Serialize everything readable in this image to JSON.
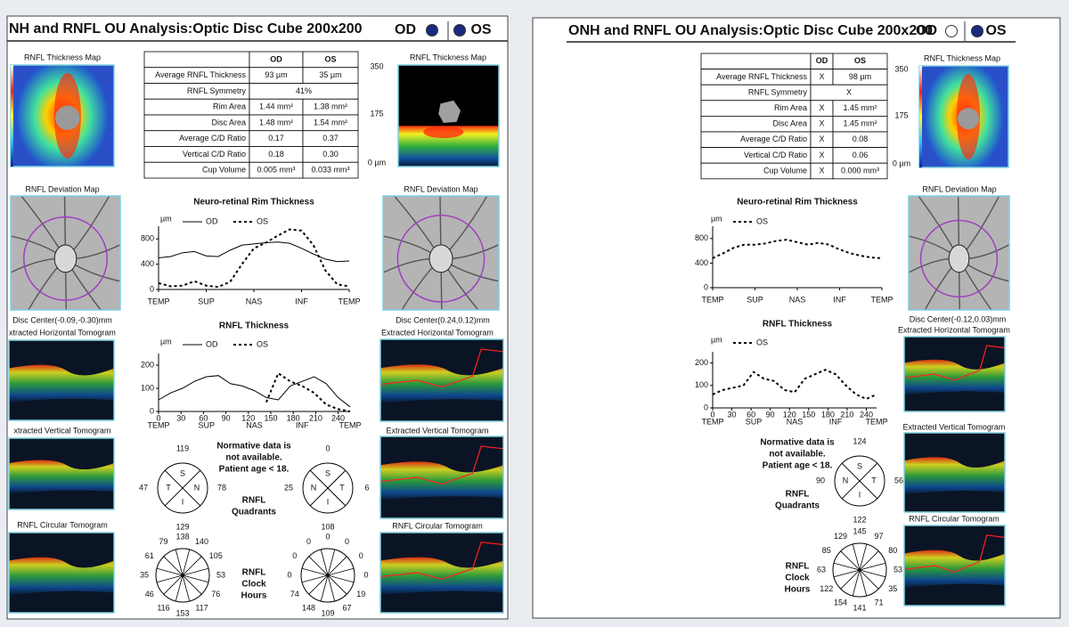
{
  "left": {
    "title": "NH and RNFL OU Analysis:Optic Disc Cube 200x200",
    "eye_labels": [
      "OD",
      "OS"
    ],
    "thickness_map_titles": [
      "RNFL Thickness Map",
      "RNFL Thickness Map"
    ],
    "scale_labels": [
      "350",
      "175",
      "0 µm"
    ],
    "table": {
      "header": [
        "OD",
        "OS"
      ],
      "rows": [
        [
          "Average RNFL Thickness",
          "93 µm",
          "35 µm"
        ],
        [
          "RNFL Symmetry",
          "41%"
        ],
        [
          "Rim Area",
          "1.44 mm²",
          "1.38 mm²"
        ],
        [
          "Disc Area",
          "1.48 mm²",
          "1.54 mm²"
        ],
        [
          "Average C/D Ratio",
          "0.17",
          "0.37"
        ],
        [
          "Vertical C/D Ratio",
          "0.18",
          "0.30"
        ],
        [
          "Cup Volume",
          "0.005 mm³",
          "0.033 mm³"
        ]
      ]
    },
    "deviation_map_titles": [
      "RNFL Deviation Map",
      "RNFL Deviation Map"
    ],
    "disc_centers": [
      "Disc Center(-0.09,-0.30)mm",
      "Disc Center(0.24,0.12)mm"
    ],
    "horizontal_tomogram_titles": [
      "xtracted Horizontal Tomogram",
      "Extracted Horizontal Tomogram"
    ],
    "vertical_tomogram_titles": [
      "xtracted Vertical Tomogram",
      "Extracted Vertical Tomogram"
    ],
    "circular_tomogram_titles": [
      "RNFL Circular Tomogram",
      "RNFL Circular Tomogram"
    ],
    "rim_chart": {
      "type": "line",
      "title": "Neuro-retinal Rim Thickness",
      "y_unit": "µm",
      "xlim": [
        0,
        256
      ],
      "ylim": [
        0,
        1000
      ],
      "yticks": [
        0,
        400,
        800
      ],
      "region_ticks": [
        {
          "value": 0,
          "label": "TEMP"
        },
        {
          "value": 64,
          "label": "SUP"
        },
        {
          "value": 128,
          "label": "NAS"
        },
        {
          "value": 192,
          "label": "INF"
        },
        {
          "value": 256,
          "label": "TEMP"
        }
      ],
      "series": [
        {
          "name": "OD",
          "color": "#000000",
          "style": "solid",
          "x": [
            0,
            16,
            32,
            48,
            64,
            80,
            96,
            112,
            128,
            144,
            160,
            176,
            192,
            208,
            224,
            240,
            256
          ],
          "values": [
            500,
            520,
            580,
            600,
            530,
            520,
            620,
            700,
            720,
            740,
            750,
            730,
            650,
            560,
            480,
            440,
            450
          ]
        },
        {
          "name": "OS",
          "color": "#000000",
          "style": "dotted",
          "x": [
            0,
            16,
            32,
            48,
            64,
            80,
            96,
            112,
            128,
            144,
            160,
            176,
            192,
            208,
            224,
            240,
            256
          ],
          "values": [
            100,
            50,
            60,
            130,
            60,
            40,
            120,
            400,
            650,
            740,
            850,
            950,
            930,
            700,
            300,
            80,
            50
          ]
        }
      ]
    },
    "rnfl_chart": {
      "type": "line",
      "title": "RNFL Thickness",
      "y_unit": "µm",
      "xlim": [
        0,
        256
      ],
      "ylim": [
        0,
        250
      ],
      "yticks": [
        0,
        100,
        200
      ],
      "xticks": [
        0,
        30,
        60,
        90,
        120,
        150,
        180,
        210,
        240
      ],
      "region_ticks": [
        {
          "value": 0,
          "label": "TEMP"
        },
        {
          "value": 64,
          "label": "SUP"
        },
        {
          "value": 128,
          "label": "NAS"
        },
        {
          "value": 192,
          "label": "INF"
        },
        {
          "value": 256,
          "label": "TEMP"
        }
      ],
      "series": [
        {
          "name": "OD",
          "color": "#000000",
          "style": "solid",
          "x": [
            0,
            16,
            32,
            48,
            64,
            80,
            96,
            112,
            128,
            144,
            160,
            176,
            192,
            208,
            224,
            240,
            256
          ],
          "values": [
            50,
            80,
            100,
            130,
            150,
            155,
            120,
            110,
            90,
            60,
            50,
            110,
            130,
            150,
            120,
            60,
            20
          ]
        },
        {
          "name": "OS",
          "color": "#000000",
          "style": "dotted",
          "x": [
            0,
            16,
            32,
            48,
            64,
            80,
            96,
            112,
            128,
            144,
            160,
            176,
            192,
            208,
            224,
            240,
            256
          ],
          "values": [
            null,
            null,
            null,
            null,
            null,
            null,
            null,
            null,
            null,
            40,
            165,
            130,
            110,
            80,
            30,
            10,
            0
          ]
        }
      ]
    },
    "normative_note": [
      "Normative data is",
      "not available.",
      "Patient age < 18."
    ],
    "quadrants_label": [
      "RNFL",
      "Quadrants"
    ],
    "quadrants": [
      {
        "letters": [
          "S",
          "T",
          "N",
          "I"
        ],
        "values": [
          119,
          47,
          78,
          129
        ]
      },
      {
        "letters": [
          "S",
          "N",
          "T",
          "I"
        ],
        "values": [
          0,
          25,
          6,
          108
        ]
      }
    ],
    "clock_label": [
      "RNFL",
      "Clock",
      "Hours"
    ],
    "clock_hours": [
      [
        138,
        140,
        105,
        53,
        76,
        117,
        153,
        116,
        46,
        35,
        61,
        79
      ],
      [
        0,
        0,
        0,
        0,
        19,
        67,
        109,
        148,
        74,
        0,
        0,
        0
      ]
    ]
  },
  "right": {
    "title": "ONH and RNFL OU Analysis:Optic Disc Cube 200x200",
    "eye_labels": [
      "OD",
      "OS"
    ],
    "thickness_map_titles": [
      "RNFL Thickness Map"
    ],
    "scale_labels": [
      "350",
      "175",
      "0 µm"
    ],
    "table": {
      "header": [
        "OD",
        "OS"
      ],
      "rows": [
        [
          "Average RNFL Thickness",
          "X",
          "98 µm"
        ],
        [
          "RNFL Symmetry",
          "X"
        ],
        [
          "Rim Area",
          "X",
          "1.45 mm²"
        ],
        [
          "Disc Area",
          "X",
          "1.45 mm²"
        ],
        [
          "Average C/D Ratio",
          "X",
          "0.08"
        ],
        [
          "Vertical C/D Ratio",
          "X",
          "0.06"
        ],
        [
          "Cup Volume",
          "X",
          "0.000 mm³"
        ]
      ]
    },
    "deviation_map_titles": [
      "RNFL Deviation Map"
    ],
    "disc_centers": [
      "Disc Center(-0.12,0.03)mm"
    ],
    "horizontal_tomogram_titles": [
      "Extracted Horizontal Tomogram"
    ],
    "vertical_tomogram_titles": [
      "Extracted Vertical Tomogram"
    ],
    "circular_tomogram_titles": [
      "RNFL Circular Tomogram"
    ],
    "rim_chart": {
      "type": "line",
      "title": "Neuro-retinal Rim Thickness",
      "y_unit": "µm",
      "xlim": [
        0,
        256
      ],
      "ylim": [
        0,
        1000
      ],
      "yticks": [
        0,
        400,
        800
      ],
      "region_ticks": [
        {
          "value": 0,
          "label": "TEMP"
        },
        {
          "value": 64,
          "label": "SUP"
        },
        {
          "value": 128,
          "label": "NAS"
        },
        {
          "value": 192,
          "label": "INF"
        },
        {
          "value": 256,
          "label": "TEMP"
        }
      ],
      "series": [
        {
          "name": "OS",
          "color": "#000000",
          "style": "dotted",
          "x": [
            0,
            16,
            32,
            48,
            64,
            80,
            96,
            112,
            128,
            144,
            160,
            176,
            192,
            208,
            224,
            240,
            256
          ],
          "values": [
            480,
            560,
            650,
            700,
            700,
            720,
            760,
            780,
            740,
            700,
            730,
            700,
            620,
            560,
            520,
            490,
            480
          ]
        }
      ]
    },
    "rnfl_chart": {
      "type": "line",
      "title": "RNFL Thickness",
      "y_unit": "µm",
      "xlim": [
        0,
        256
      ],
      "ylim": [
        0,
        250
      ],
      "yticks": [
        0,
        100,
        200
      ],
      "xticks": [
        0,
        30,
        60,
        90,
        120,
        150,
        180,
        210,
        240
      ],
      "region_ticks": [
        {
          "value": 0,
          "label": "TEMP"
        },
        {
          "value": 64,
          "label": "SUP"
        },
        {
          "value": 128,
          "label": "NAS"
        },
        {
          "value": 192,
          "label": "INF"
        },
        {
          "value": 256,
          "label": "TEMP"
        }
      ],
      "series": [
        {
          "name": "OS",
          "color": "#000000",
          "style": "dotted",
          "x": [
            0,
            16,
            32,
            48,
            64,
            80,
            96,
            112,
            128,
            144,
            160,
            176,
            192,
            208,
            224,
            240,
            256
          ],
          "values": [
            60,
            80,
            90,
            100,
            160,
            130,
            120,
            80,
            70,
            130,
            150,
            170,
            150,
            100,
            60,
            40,
            60
          ]
        }
      ]
    },
    "normative_note": [
      "Normative data is",
      "not available.",
      "Patient age < 18."
    ],
    "quadrants_label": [
      "RNFL",
      "Quadrants"
    ],
    "quadrants": [
      {
        "letters": [
          "S",
          "N",
          "T",
          "I"
        ],
        "values": [
          124,
          90,
          56,
          122
        ]
      }
    ],
    "clock_label": [
      "RNFL",
      "Clock",
      "Hours"
    ],
    "clock_hours": [
      [
        145,
        97,
        80,
        53,
        35,
        71,
        141,
        154,
        122,
        63,
        85,
        129
      ]
    ]
  }
}
